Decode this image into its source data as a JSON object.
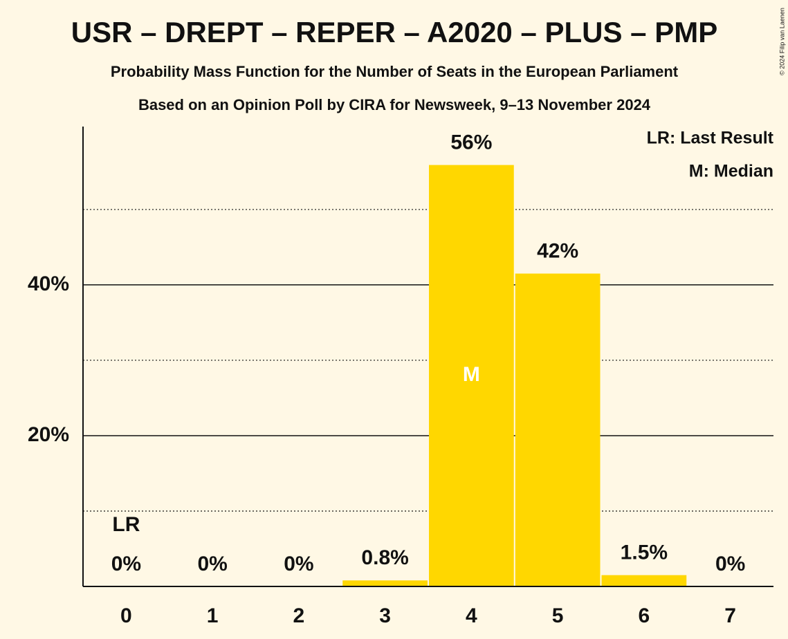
{
  "chart_data": {
    "type": "bar",
    "title": "USR – DREPT – REPER – A2020 – PLUS – PMP",
    "subtitle": "Probability Mass Function for the Number of Seats in the European Parliament",
    "subtitle2": "Based on an Opinion Poll by CIRA for Newsweek, 9–13 November 2024",
    "copyright": "© 2024 Filip van Laenen",
    "categories": [
      "0",
      "1",
      "2",
      "3",
      "4",
      "5",
      "6",
      "7"
    ],
    "values": [
      0,
      0,
      0,
      0.8,
      55.9,
      41.5,
      1.5,
      0
    ],
    "value_labels": [
      "0%",
      "0%",
      "0%",
      "0.8%",
      "56%",
      "42%",
      "1.5%",
      "0%"
    ],
    "color": "#ffd700",
    "ylim": [
      0,
      61
    ],
    "yticks": [
      {
        "value": 20,
        "label": "20%"
      },
      {
        "value": 40,
        "label": "40%"
      }
    ],
    "minor_yticks": [
      10,
      30,
      50
    ],
    "grid": true,
    "markers": [
      {
        "label": "LR",
        "at": 0,
        "place": "above"
      },
      {
        "label": "M",
        "at": 4,
        "place": "inside"
      }
    ],
    "legend": [
      "LR: Last Result",
      "M: Median"
    ],
    "legend_position": "top-right"
  }
}
